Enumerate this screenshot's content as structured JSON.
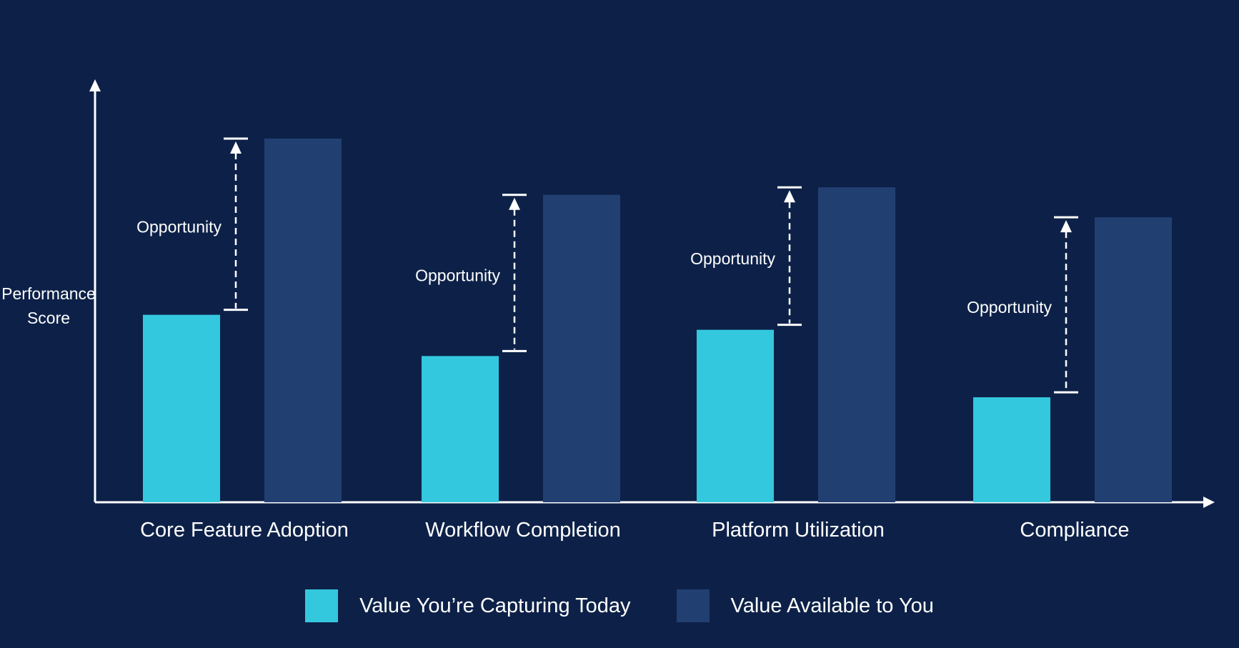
{
  "chart_data": {
    "type": "bar",
    "ylabel": [
      "Performance",
      "Score"
    ],
    "categories": [
      "Core Feature Adoption",
      "Workflow Completion",
      "Platform Utilization",
      "Compliance"
    ],
    "series": [
      {
        "name": "Value You’re Capturing Today",
        "color": "#34c8de",
        "values": [
          50,
          39,
          46,
          28
        ]
      },
      {
        "name": "Value Available to You",
        "color": "#223f72",
        "values": [
          97,
          82,
          84,
          76
        ]
      }
    ],
    "annotation_label": "Opportunity",
    "ylim": [
      0,
      105
    ],
    "grid": false,
    "legend_position": "bottom"
  }
}
